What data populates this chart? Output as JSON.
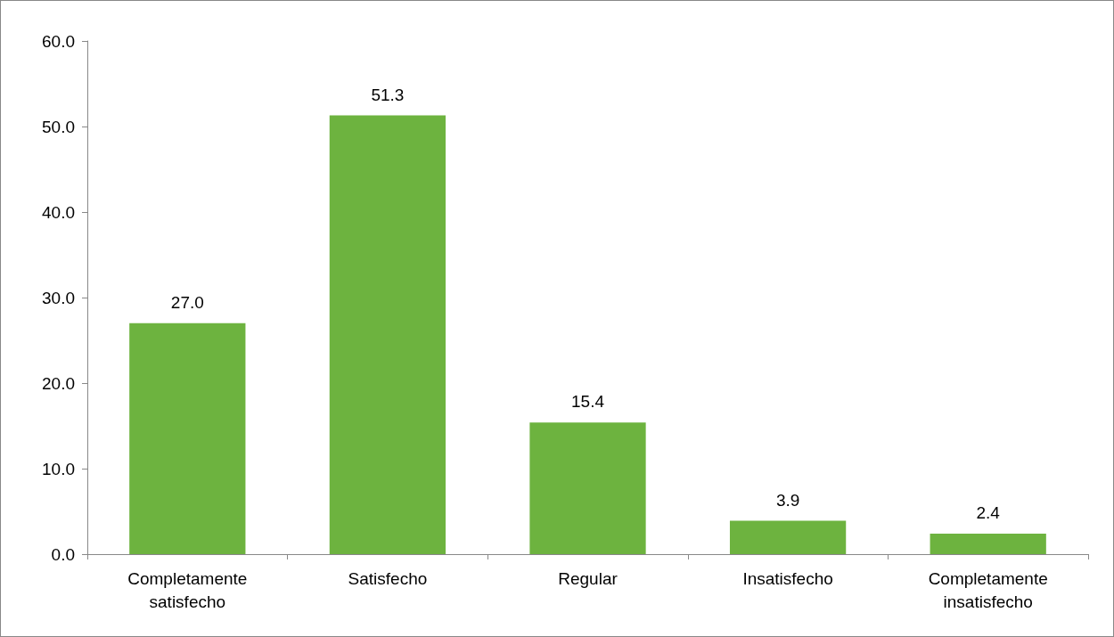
{
  "chart_data": {
    "type": "bar",
    "categories": [
      "Completamente\nsatisfecho",
      "Satisfecho",
      "Regular",
      "Insatisfecho",
      "Completamente\ninsatisfecho"
    ],
    "values": [
      27.0,
      51.3,
      15.4,
      3.9,
      2.4
    ],
    "value_labels": [
      "27.0",
      "51.3",
      "15.4",
      "3.9",
      "2.4"
    ],
    "color": "#6db33f",
    "ylim": [
      0,
      60
    ],
    "yticks": [
      {
        "value": 0,
        "label": "0.0"
      },
      {
        "value": 10,
        "label": "10.0"
      },
      {
        "value": 20,
        "label": "20.0"
      },
      {
        "value": 30,
        "label": "30.0"
      },
      {
        "value": 40,
        "label": "40.0"
      },
      {
        "value": 50,
        "label": "50.0"
      },
      {
        "value": 60,
        "label": "60.0"
      }
    ],
    "grid": false
  }
}
